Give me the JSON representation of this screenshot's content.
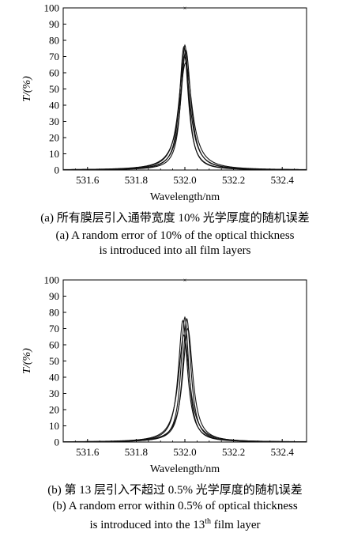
{
  "chart_data": [
    {
      "type": "line",
      "xlabel": "Wavelength/nm",
      "ylabel": "T/(%)",
      "xlim": [
        531.5,
        532.5
      ],
      "ylim": [
        0,
        100
      ],
      "xticks": [
        "531.6",
        "531.8",
        "532.0",
        "532.2",
        "532.4"
      ],
      "yticks": [
        "0",
        "10",
        "20",
        "30",
        "40",
        "50",
        "60",
        "70",
        "80",
        "90",
        "100"
      ],
      "center": 532.0,
      "series": [
        {
          "peak": 77,
          "fwhm": 0.04,
          "shift": 0.0
        },
        {
          "peak": 76,
          "fwhm": 0.044,
          "shift": -0.004
        },
        {
          "peak": 74,
          "fwhm": 0.05,
          "shift": 0.004
        },
        {
          "peak": 70,
          "fwhm": 0.056,
          "shift": -0.002
        },
        {
          "peak": 66,
          "fwhm": 0.064,
          "shift": 0.003
        }
      ],
      "caption_cn": "(a) 所有膜层引入通带宽度 10% 光学厚度的随机误差",
      "caption_en_1": "(a) A random error of 10% of the optical thickness",
      "caption_en_2": "is introduced into all film layers"
    },
    {
      "type": "line",
      "xlabel": "Wavelength/nm",
      "ylabel": "T/(%)",
      "xlim": [
        531.5,
        532.5
      ],
      "ylim": [
        0,
        100
      ],
      "xticks": [
        "531.6",
        "531.8",
        "532.0",
        "532.2",
        "532.4"
      ],
      "yticks": [
        "0",
        "10",
        "20",
        "30",
        "40",
        "50",
        "60",
        "70",
        "80",
        "90",
        "100"
      ],
      "center": 532.0,
      "series": [
        {
          "peak": 77,
          "fwhm": 0.04,
          "shift": 0.0
        },
        {
          "peak": 76,
          "fwhm": 0.042,
          "shift": 0.008
        },
        {
          "peak": 75,
          "fwhm": 0.046,
          "shift": -0.008
        },
        {
          "peak": 70,
          "fwhm": 0.05,
          "shift": 0.012
        },
        {
          "peak": 66,
          "fwhm": 0.056,
          "shift": -0.004
        }
      ],
      "caption_cn": "(b) 第 13 层引入不超过 0.5% 光学厚度的随机误差",
      "caption_en_1": "(b) A random error within 0.5% of optical thickness",
      "caption_en_2": "is introduced into the 13",
      "caption_en_sup": "th",
      "caption_en_3": " film layer"
    }
  ]
}
